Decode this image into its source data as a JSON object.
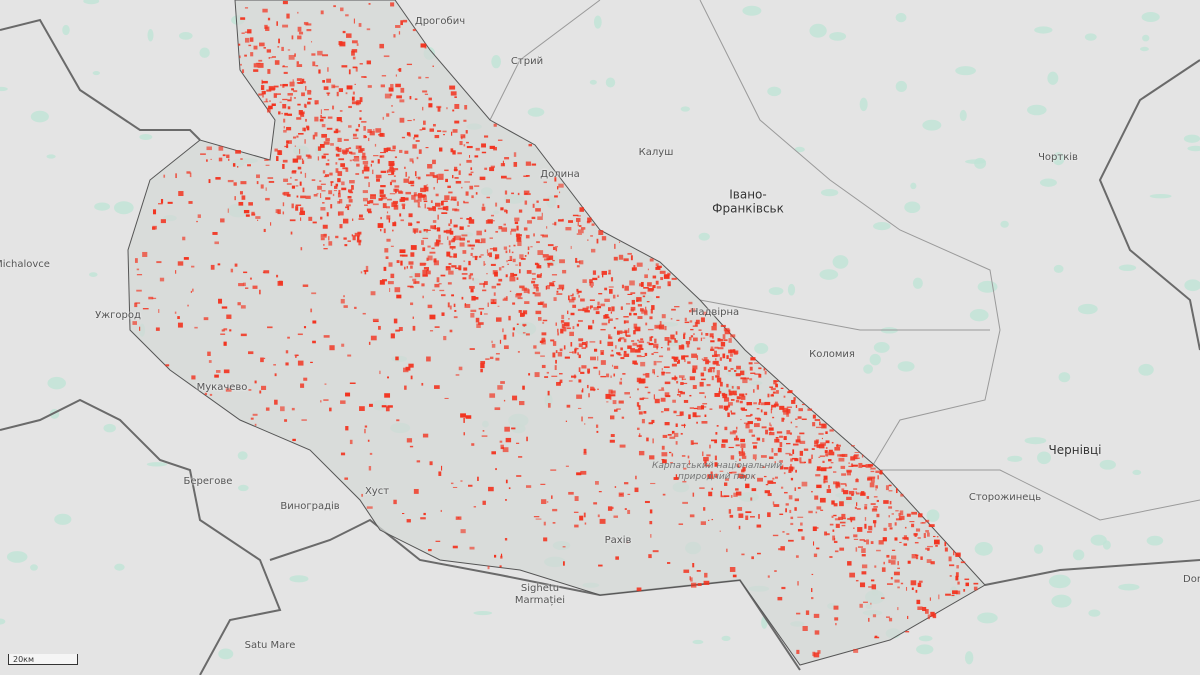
{
  "map": {
    "colors": {
      "background": "#e4e4e4",
      "region_fill": "#d7dcd9",
      "forest": "#bfe3d6",
      "highlight": "#f2321e",
      "border": "#6a6a6a"
    },
    "labels": [
      {
        "text": "Дрогобич",
        "cls": ""
      },
      {
        "text": "Стрий",
        "cls": ""
      },
      {
        "text": "Калуш",
        "cls": ""
      },
      {
        "text": "Долина",
        "cls": ""
      },
      {
        "text": "Івано-\nФранківськ",
        "cls": "big"
      },
      {
        "text": "Чортків",
        "cls": ""
      },
      {
        "text": "Надвірна",
        "cls": ""
      },
      {
        "text": "Коломия",
        "cls": ""
      },
      {
        "text": "Чернівці",
        "cls": "big"
      },
      {
        "text": "Сторожинець",
        "cls": ""
      },
      {
        "text": "Michalovce",
        "cls": ""
      },
      {
        "text": "Ужгород",
        "cls": ""
      },
      {
        "text": "Мукачево",
        "cls": ""
      },
      {
        "text": "Берегове",
        "cls": ""
      },
      {
        "text": "Виноградів",
        "cls": ""
      },
      {
        "text": "Хуст",
        "cls": ""
      },
      {
        "text": "Рахів",
        "cls": ""
      },
      {
        "text": "Sighetu\nMarmației",
        "cls": ""
      },
      {
        "text": "Satu Mare",
        "cls": ""
      },
      {
        "text": "Dor",
        "cls": ""
      },
      {
        "text": "Карпатський національний\nприродний парк",
        "cls": "park"
      }
    ],
    "scale_label": "20км"
  }
}
